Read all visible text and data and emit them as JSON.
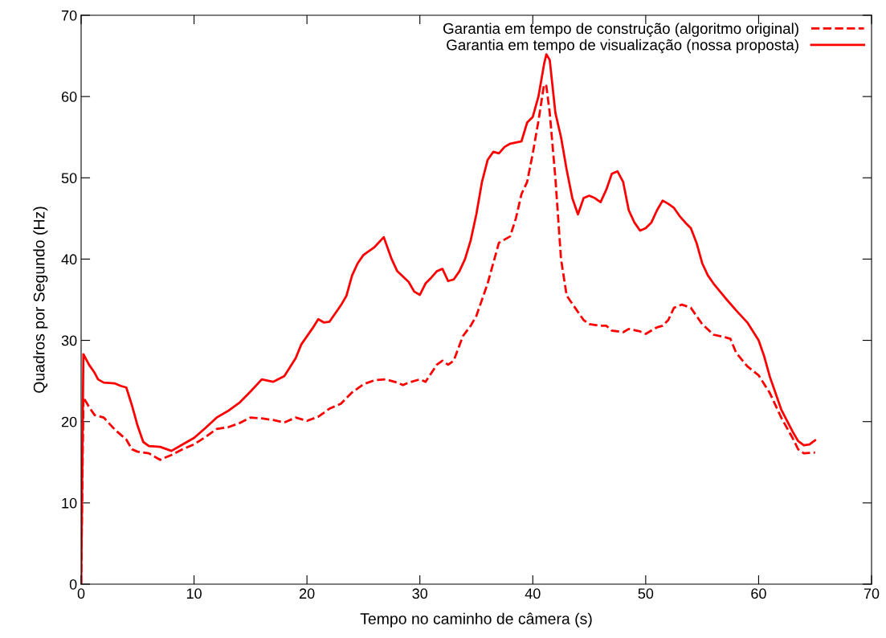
{
  "chart_data": {
    "type": "line",
    "xlabel": "Tempo no caminho de câmera (s)",
    "ylabel": "Quadros por Segundo (Hz)",
    "xlim": [
      0,
      70
    ],
    "ylim": [
      0,
      70
    ],
    "xticks": [
      0,
      10,
      20,
      30,
      40,
      50,
      60,
      70
    ],
    "yticks": [
      0,
      10,
      20,
      30,
      40,
      50,
      60,
      70
    ],
    "grid": false,
    "legend": "top right",
    "marker": "none",
    "series": [
      {
        "name": "Garantia em tempo de construção (algoritmo original)",
        "color": "#ff0000",
        "line_style": "dashed",
        "x": [
          0,
          0.2,
          0.7,
          1.2,
          2,
          3,
          4,
          4.5,
          5,
          6,
          7,
          8,
          9,
          10,
          11,
          12,
          13,
          14,
          15,
          16,
          17,
          18,
          19,
          20,
          21,
          22,
          23,
          24,
          25,
          26,
          27,
          28,
          28.5,
          29,
          30,
          30.5,
          31.5,
          32,
          32.5,
          33,
          33.8,
          34.5,
          35,
          35.5,
          36,
          36.5,
          37,
          38,
          38.5,
          39,
          39.5,
          40,
          40.5,
          41,
          41.2,
          41.5,
          42,
          42.5,
          43,
          43.5,
          44,
          44.5,
          45,
          46,
          46.5,
          47,
          48,
          48.5,
          49.5,
          50,
          51,
          51.5,
          52,
          52.5,
          53.2,
          54,
          55,
          56,
          57,
          57.5,
          58,
          59,
          60,
          61,
          62,
          63,
          63.5,
          64,
          65
        ],
        "values": [
          0,
          23,
          21.8,
          20.8,
          20.5,
          19,
          17.8,
          16.6,
          16.3,
          16.1,
          15.3,
          15.9,
          16.6,
          17.2,
          18.1,
          19.1,
          19.3,
          19.8,
          20.5,
          20.4,
          20.2,
          19.9,
          20.5,
          20.1,
          20.6,
          21.6,
          22.2,
          23.6,
          24.6,
          25.1,
          25.2,
          24.8,
          24.5,
          24.8,
          25.2,
          24.9,
          27,
          27.5,
          27,
          27.5,
          30.5,
          31.8,
          33,
          35,
          37,
          39.5,
          42,
          42.8,
          45,
          48,
          49.5,
          53,
          57,
          61.5,
          61.3,
          58,
          50,
          40,
          35.5,
          34.5,
          33.5,
          32.5,
          32,
          31.8,
          31.8,
          31.2,
          31,
          31.4,
          31.1,
          30.8,
          31.6,
          31.8,
          32.5,
          34,
          34.4,
          34,
          32,
          30.7,
          30.4,
          30.2,
          28.5,
          26.8,
          25.7,
          23.5,
          20.5,
          18,
          16.6,
          16.1,
          16.2
        ]
      },
      {
        "name": "Garantia em tempo de visualização (nossa proposta)",
        "color": "#ff0000",
        "line_style": "solid",
        "x": [
          0,
          0.2,
          0.7,
          1.2,
          1.5,
          2,
          3,
          3.5,
          4,
          4.5,
          5,
          5.5,
          6,
          7,
          8,
          9,
          10,
          11,
          12,
          13,
          14,
          15,
          16,
          17,
          18,
          19,
          19.5,
          20.5,
          21,
          21.5,
          22,
          23,
          23.5,
          24,
          24.5,
          25,
          25.5,
          26,
          26.8,
          27.5,
          28,
          29,
          29.5,
          30,
          30.5,
          31,
          31.5,
          32,
          32.5,
          33,
          33.5,
          34,
          34.5,
          35,
          35.5,
          36,
          36.5,
          37,
          37.5,
          38,
          39,
          39.5,
          40,
          40.5,
          41,
          41.2,
          41.5,
          42,
          42.5,
          43,
          43.5,
          44,
          44.5,
          45,
          45.5,
          46,
          46.5,
          47,
          47.5,
          48,
          48.5,
          49,
          49.5,
          50,
          50.5,
          51,
          51.5,
          52,
          52.5,
          53,
          53.5,
          54,
          54.5,
          55,
          55.5,
          56,
          57,
          58,
          59,
          60,
          60.5,
          61,
          62,
          63,
          63.5,
          64,
          64.5,
          65
        ],
        "values": [
          0,
          28.3,
          27,
          26,
          25.2,
          24.8,
          24.7,
          24.4,
          24.2,
          22,
          19.5,
          17.5,
          17,
          16.9,
          16.4,
          17.2,
          18,
          19.2,
          20.5,
          21.3,
          22.3,
          23.7,
          25.2,
          24.9,
          25.6,
          27.8,
          29.5,
          31.5,
          32.6,
          32.2,
          32.3,
          34.3,
          35.5,
          38,
          39.5,
          40.5,
          41,
          41.5,
          42.7,
          40,
          38.5,
          37.2,
          36,
          35.6,
          37,
          37.7,
          38.5,
          38.8,
          37.3,
          37.5,
          38.5,
          40,
          42.3,
          45.5,
          49.5,
          52.2,
          53.2,
          53,
          53.8,
          54.2,
          54.5,
          56.8,
          57.5,
          60,
          64,
          65.2,
          64.5,
          58,
          55,
          51,
          47.5,
          45.5,
          47.5,
          47.8,
          47.5,
          47,
          48.5,
          50.5,
          50.8,
          49.5,
          46,
          44.5,
          43.5,
          43.8,
          44.5,
          46,
          47.2,
          46.8,
          46.3,
          45.3,
          44.5,
          43.8,
          42,
          39.5,
          38,
          37,
          35.3,
          33.7,
          32.2,
          30,
          28,
          25.5,
          21.5,
          18.8,
          17.6,
          17.1,
          17.2,
          17.7
        ]
      }
    ]
  }
}
